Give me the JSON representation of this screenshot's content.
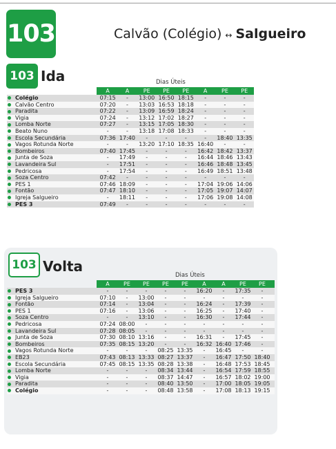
{
  "header": {
    "route_number": "103",
    "origin": "Calvão (Colégio)",
    "arrow": "↔",
    "destination": "Salgueiro"
  },
  "ida": {
    "badge": "103",
    "title": "Ida",
    "day_label": "Dias Úteis",
    "columns": [
      "A",
      "A",
      "PE",
      "PE",
      "PE",
      "A",
      "PE",
      "PE"
    ],
    "rows": [
      {
        "stop": "Colégio",
        "bold": true,
        "times": [
          "07:15",
          "-",
          "13:00",
          "16:50",
          "18:15",
          "-",
          "-",
          "-"
        ]
      },
      {
        "stop": "Calvão Centro",
        "bold": false,
        "times": [
          "07:20",
          "-",
          "13:03",
          "16:53",
          "18:18",
          "-",
          "-",
          "-"
        ]
      },
      {
        "stop": "Paradita",
        "bold": false,
        "times": [
          "07:22",
          "-",
          "13:09",
          "16:59",
          "18:24",
          "-",
          "-",
          "-"
        ]
      },
      {
        "stop": "Vigia",
        "bold": false,
        "times": [
          "07:24",
          "-",
          "13:12",
          "17:02",
          "18:27",
          "-",
          "-",
          "-"
        ]
      },
      {
        "stop": "Lomba Norte",
        "bold": false,
        "times": [
          "07:27",
          "-",
          "13:15",
          "17:05",
          "18:30",
          "-",
          "-",
          "-"
        ]
      },
      {
        "stop": "Beato Nuno",
        "bold": false,
        "times": [
          "-",
          "-",
          "13:18",
          "17:08",
          "18:33",
          "-",
          "-",
          "-"
        ]
      },
      {
        "stop": "Escola Secundária",
        "bold": false,
        "times": [
          "07:36",
          "17:40",
          "-",
          "-",
          "-",
          "-",
          "18:40",
          "13:35"
        ]
      },
      {
        "stop": "Vagos Rotunda Norte",
        "bold": false,
        "times": [
          "-",
          "-",
          "13:20",
          "17:10",
          "18:35",
          "16:40",
          "-",
          "-"
        ]
      },
      {
        "stop": "Bombeiros",
        "bold": false,
        "times": [
          "07:40",
          "17:45",
          "-",
          "-",
          "-",
          "16:42",
          "18:42",
          "13:37"
        ]
      },
      {
        "stop": "Junta de Soza",
        "bold": false,
        "times": [
          "-",
          "17:49",
          "-",
          "-",
          "-",
          "16:44",
          "18:46",
          "13:43"
        ]
      },
      {
        "stop": "Lavandeira Sul",
        "bold": false,
        "times": [
          "-",
          "17:51",
          "-",
          "-",
          "-",
          "16:46",
          "18:48",
          "13:45"
        ]
      },
      {
        "stop": "Pedricosa",
        "bold": false,
        "times": [
          "-",
          "17:54",
          "-",
          "-",
          "-",
          "16:49",
          "18:51",
          "13:48"
        ]
      },
      {
        "stop": "Soza Centro",
        "bold": false,
        "times": [
          "07:42",
          "-",
          "-",
          "-",
          "-",
          "-",
          "-",
          "-"
        ]
      },
      {
        "stop": "PES 1",
        "bold": false,
        "times": [
          "07:46",
          "18:09",
          "-",
          "-",
          "-",
          "17:04",
          "19:06",
          "14:06"
        ]
      },
      {
        "stop": "Fontão",
        "bold": false,
        "times": [
          "07:47",
          "18:10",
          "-",
          "-",
          "-",
          "17:05",
          "19:07",
          "14:07"
        ]
      },
      {
        "stop": "Igreja Salgueiro",
        "bold": false,
        "times": [
          "-",
          "18:11",
          "-",
          "-",
          "-",
          "17:06",
          "19:08",
          "14:08"
        ]
      },
      {
        "stop": "PES 3",
        "bold": true,
        "times": [
          "07:49",
          "-",
          "-",
          "-",
          "-",
          "-",
          "-",
          "-"
        ]
      }
    ]
  },
  "volta": {
    "badge": "103",
    "title": "Volta",
    "day_label": "Dias Úteis",
    "columns": [
      "A",
      "PE",
      "PE",
      "PE",
      "PE",
      "A",
      "A",
      "PE",
      "PE"
    ],
    "rows": [
      {
        "stop": "PES 3",
        "bold": true,
        "times": [
          "-",
          "-",
          "-",
          "-",
          "-",
          "16:20",
          "-",
          "17:35",
          "-"
        ]
      },
      {
        "stop": "Igreja Salgueiro",
        "bold": false,
        "times": [
          "07:10",
          "-",
          "13:00",
          "-",
          "-",
          "-",
          "-",
          "-",
          "-"
        ]
      },
      {
        "stop": "Fontão",
        "bold": false,
        "times": [
          "07:14",
          "-",
          "13:04",
          "-",
          "-",
          "16:24",
          "-",
          "17:39",
          "-"
        ]
      },
      {
        "stop": "PES 1",
        "bold": false,
        "times": [
          "07:16",
          "-",
          "13:06",
          "-",
          "-",
          "16:25",
          "-",
          "17:40",
          "-"
        ]
      },
      {
        "stop": "Soza Centro",
        "bold": false,
        "times": [
          "-",
          "-",
          "13:10",
          "-",
          "-",
          "16:30",
          "-",
          "17:44",
          "-"
        ]
      },
      {
        "stop": "Pedricosa",
        "bold": false,
        "times": [
          "07:24",
          "08:00",
          "-",
          "-",
          "-",
          "-",
          "-",
          "-",
          "-"
        ]
      },
      {
        "stop": "Lavandeira Sul",
        "bold": false,
        "times": [
          "07:28",
          "08:05",
          "-",
          "-",
          "-",
          "-",
          "-",
          "-",
          "-"
        ]
      },
      {
        "stop": "Junta de Soza",
        "bold": false,
        "times": [
          "07:30",
          "08:10",
          "13:16",
          "-",
          "-",
          "16:31",
          "-",
          "17:45",
          "-"
        ]
      },
      {
        "stop": "Bombeiros",
        "bold": false,
        "times": [
          "07:35",
          "08:15",
          "13:20",
          "-",
          "-",
          "16:32",
          "16:40",
          "17:46",
          "-"
        ]
      },
      {
        "stop": "Vagos Rotunda Norte",
        "bold": false,
        "times": [
          "-",
          "-",
          "-",
          "08:25",
          "13:35",
          "-",
          "16:45",
          "-",
          "-"
        ]
      },
      {
        "stop": "EB23",
        "bold": false,
        "times": [
          "07:43",
          "08:13",
          "13:33",
          "08:27",
          "13:37",
          "-",
          "16:47",
          "17:50",
          "18:40"
        ]
      },
      {
        "stop": "Escola Secundária",
        "bold": false,
        "times": [
          "07:45",
          "08:15",
          "13:35",
          "08:28",
          "13:38",
          "-",
          "16:48",
          "17:53",
          "18:45"
        ]
      },
      {
        "stop": "Lomba Norte",
        "bold": false,
        "times": [
          "-",
          "-",
          "-",
          "08:34",
          "13:44",
          "-",
          "16:54",
          "17:59",
          "18:55"
        ]
      },
      {
        "stop": "Vigia",
        "bold": false,
        "times": [
          "-",
          "-",
          "-",
          "08:37",
          "14:47",
          "-",
          "16:57",
          "18:02",
          "19:00"
        ]
      },
      {
        "stop": "Paradita",
        "bold": false,
        "times": [
          "-",
          "-",
          "-",
          "08:40",
          "13:50",
          "-",
          "17:00",
          "18:05",
          "19:05"
        ]
      },
      {
        "stop": "Colégio",
        "bold": true,
        "times": [
          "-",
          "-",
          "-",
          "08:48",
          "13:58",
          "-",
          "17:08",
          "18:13",
          "19:15"
        ]
      }
    ]
  }
}
